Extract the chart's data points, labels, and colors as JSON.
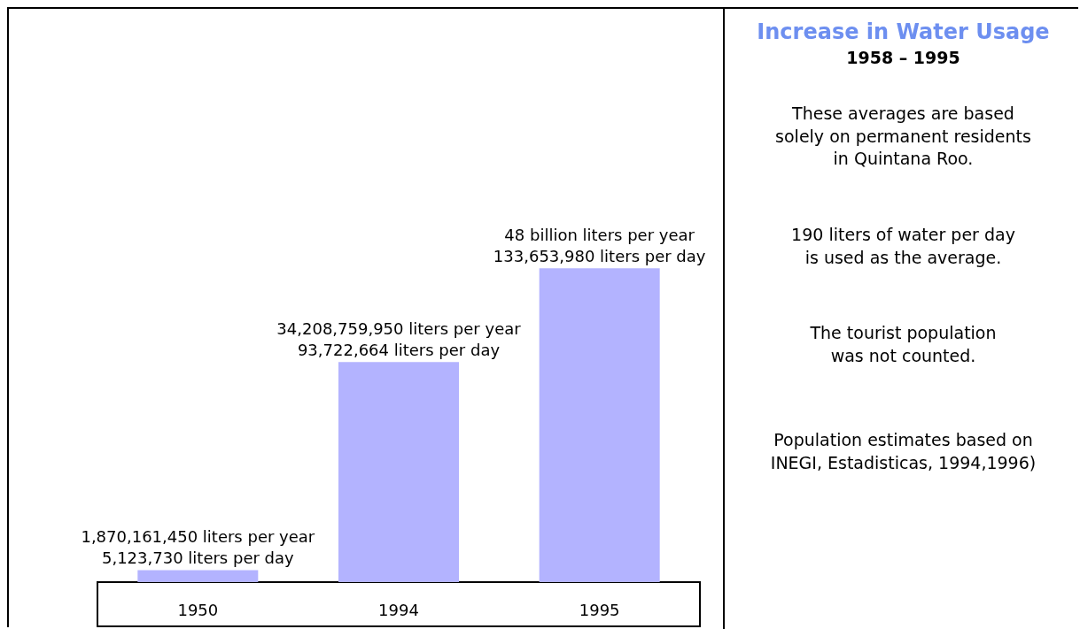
{
  "chart_data": {
    "type": "bar",
    "title": "Increase in Water Usage",
    "subtitle": "1958 – 1995",
    "categories": [
      "1950",
      "1994",
      "1995"
    ],
    "values": [
      5123730,
      93722664,
      133653980
    ],
    "color": "#b3b3ff",
    "value_labels": [
      "1,870,161,450 liters per year\n5,123,730 liters per day",
      "34,208,759,950 liters per year\n93,722,664 liters per day",
      "48 billion liters per year\n133,653,980 liters per day"
    ],
    "annotations": [
      "These averages are based\nsolely on permanent residents\nin Quintana Roo.",
      "190 liters of water per day\nis used as the average.",
      "The tourist population\nwas not counted.",
      "Population estimates based on\nINEGI, Estadisticas, 1994,1996)"
    ],
    "ylabel": null
  }
}
